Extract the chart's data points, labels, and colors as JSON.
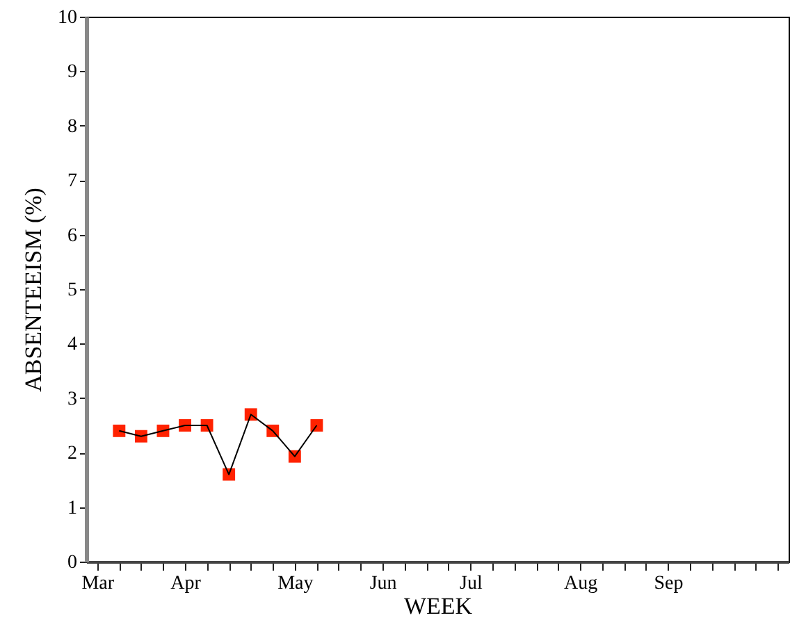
{
  "chart_data": {
    "type": "line",
    "xlabel": "WEEK",
    "ylabel": "ABSENTEEISM (%)",
    "categories": [
      "Mar",
      null,
      null,
      null,
      "Apr",
      null,
      null,
      null,
      null,
      "May",
      null,
      null,
      null,
      "Jun",
      null,
      null,
      null,
      "Jul",
      null,
      null,
      null,
      null,
      "Aug",
      null,
      null,
      null,
      "Sep",
      null,
      null,
      null,
      null,
      null
    ],
    "series": [
      {
        "color": "#ff2200",
        "values": [
          null,
          2.4,
          2.3,
          2.4,
          2.5,
          2.5,
          1.6,
          2.7,
          2.4,
          1.93,
          2.5,
          null,
          null,
          null,
          null,
          null,
          null,
          null,
          null,
          null,
          null,
          null,
          null,
          null,
          null,
          null,
          null,
          null,
          null,
          null,
          null,
          null
        ]
      }
    ],
    "marker": "square",
    "line_style": "solid",
    "grid": false,
    "ylim": [
      0,
      10
    ],
    "yticks": [
      0,
      1,
      2,
      3,
      4,
      5,
      6,
      7,
      8,
      9,
      10
    ]
  }
}
